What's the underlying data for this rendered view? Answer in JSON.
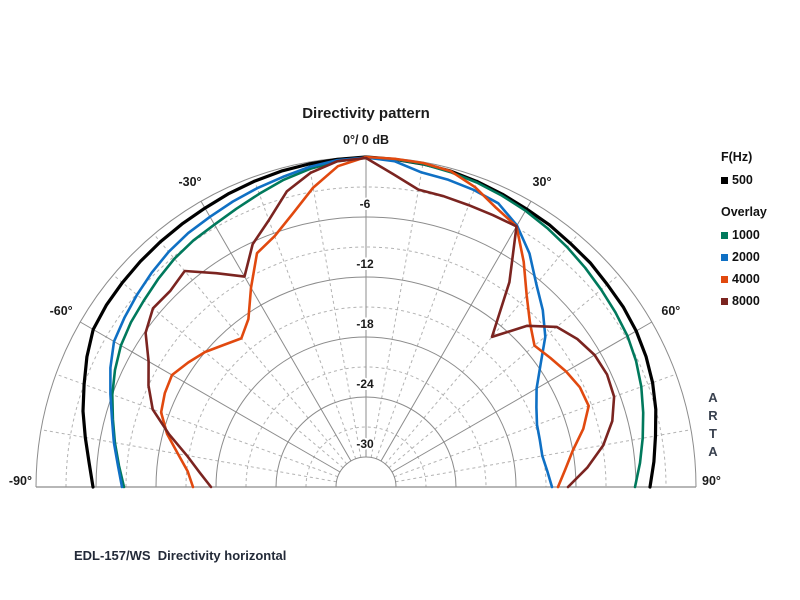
{
  "title": "Directivity pattern",
  "caption": "EDL-157/WS  Directivity horizontal",
  "watermark_letters": [
    "A",
    "R",
    "T",
    "A"
  ],
  "legend": {
    "freq_header": "F(Hz)",
    "freq_items": [
      {
        "label": "500",
        "color": "#000000"
      }
    ],
    "overlay_header": "Overlay",
    "overlay_items": [
      {
        "label": "1000",
        "color": "#00795c"
      },
      {
        "label": "2000",
        "color": "#0f70c4"
      },
      {
        "label": "4000",
        "color": "#e1490f"
      },
      {
        "label": "8000",
        "color": "#7b2420"
      }
    ]
  },
  "chart_data": {
    "type": "polar-directivity-half",
    "title": "Directivity pattern",
    "top_label": "0°/ 0 dB",
    "units": "dB",
    "db_range": [
      0,
      -30
    ],
    "grid": {
      "solid_rings_db": [
        0,
        -6,
        -12,
        -18,
        -24,
        -30
      ],
      "dashed_rings_db": [
        -3,
        -9,
        -15,
        -21,
        -27
      ],
      "ring_labels": [
        {
          "db": -6,
          "text": "-6"
        },
        {
          "db": -12,
          "text": "-12"
        },
        {
          "db": -18,
          "text": "-18"
        },
        {
          "db": -24,
          "text": "-24"
        },
        {
          "db": -30,
          "text": "-30"
        }
      ],
      "major_ray_step_deg": 30,
      "minor_ray_step_deg": 10,
      "solid_color": "#8c8c8c",
      "dashed_color": "#b3b3b3"
    },
    "angle_labels": [
      {
        "angle": -30,
        "text": "-30°"
      },
      {
        "angle": 30,
        "text": "30°"
      },
      {
        "angle": -60,
        "text": "-60°"
      },
      {
        "angle": 60,
        "text": "60°"
      },
      {
        "angle": -90,
        "text": "-90°"
      },
      {
        "angle": 90,
        "text": "90°"
      }
    ],
    "angles_deg": [
      -90,
      -85,
      -80,
      -75,
      -70,
      -65,
      -60,
      -55,
      -50,
      -45,
      -40,
      -35,
      -30,
      -25,
      -20,
      -15,
      -10,
      -5,
      0,
      5,
      10,
      15,
      20,
      25,
      30,
      35,
      40,
      45,
      50,
      55,
      60,
      65,
      70,
      75,
      80,
      85,
      90
    ],
    "series": [
      {
        "name": "500",
        "color": "#000000",
        "width": 3.2,
        "db": [
          -5.7,
          -5.2,
          -4.5,
          -3.7,
          -3.0,
          -2.2,
          -1.5,
          -1.3,
          -1.2,
          -1.1,
          -1.0,
          -0.9,
          -0.8,
          -0.6,
          -0.45,
          -0.3,
          -0.2,
          -0.1,
          0,
          -0.1,
          -0.2,
          -0.3,
          -0.5,
          -0.7,
          -0.9,
          -1.0,
          -1.2,
          -1.3,
          -1.5,
          -1.6,
          -1.8,
          -2.1,
          -2.5,
          -3.0,
          -3.6,
          -4.1,
          -4.6
        ]
      },
      {
        "name": "1000",
        "color": "#00795c",
        "width": 2.6,
        "db": [
          -8.8,
          -8.2,
          -7.5,
          -6.8,
          -6.0,
          -5.3,
          -4.7,
          -4.3,
          -4.0,
          -3.6,
          -3.2,
          -2.9,
          -2.7,
          -2.3,
          -1.8,
          -1.2,
          -0.7,
          -0.3,
          -0.1,
          -0.1,
          -0.2,
          -0.4,
          -0.6,
          -0.85,
          -1.1,
          -1.4,
          -1.7,
          -2.0,
          -2.3,
          -2.55,
          -2.8,
          -3.2,
          -3.7,
          -4.3,
          -4.9,
          -5.5,
          -6.1
        ]
      },
      {
        "name": "2000",
        "color": "#0f70c4",
        "width": 2.6,
        "db": [
          -8.6,
          -8.1,
          -7.4,
          -6.7,
          -5.8,
          -4.8,
          -3.9,
          -3.5,
          -3.1,
          -2.7,
          -2.3,
          -2.0,
          -1.8,
          -1.5,
          -1.2,
          -0.9,
          -0.5,
          -0.2,
          -0.05,
          -0.3,
          -1.05,
          -1.2,
          -1.4,
          -1.7,
          -2.8,
          -4.5,
          -6.5,
          -8.0,
          -9.6,
          -11.7,
          -13.3,
          -14.2,
          -14.8,
          -15.0,
          -15.1,
          -14.8,
          -14.4
        ]
      },
      {
        "name": "4000",
        "color": "#e1490f",
        "width": 2.6,
        "db": [
          -15.7,
          -15.1,
          -13.9,
          -12.4,
          -11.2,
          -10.8,
          -10.6,
          -11.3,
          -12.0,
          -12.9,
          -13.6,
          -12.5,
          -10.0,
          -7.2,
          -6.3,
          -4.7,
          -2.6,
          -0.8,
          0,
          -0.05,
          -0.1,
          -0.3,
          -1.1,
          -2.2,
          -2.9,
          -5.5,
          -8.0,
          -9.8,
          -11.0,
          -10.5,
          -9.9,
          -9.4,
          -9.3,
          -10.5,
          -12.0,
          -13.0,
          -13.8
        ]
      },
      {
        "name": "8000",
        "color": "#7b2420",
        "width": 2.6,
        "db": [
          -17.5,
          -16.3,
          -14.8,
          -12.6,
          -10.3,
          -9.0,
          -7.9,
          -6.1,
          -5.2,
          -5.3,
          -4.8,
          -6.9,
          -8.7,
          -6.2,
          -4.6,
          -2.4,
          -1.1,
          -0.3,
          -0.1,
          -1.6,
          -2.8,
          -2.9,
          -3.0,
          -3.0,
          -2.9,
          -8.0,
          -13.4,
          -10.2,
          -8.1,
          -7.2,
          -6.6,
          -6.4,
          -6.6,
          -7.5,
          -8.9,
          -10.8,
          -12.8
        ]
      }
    ]
  }
}
